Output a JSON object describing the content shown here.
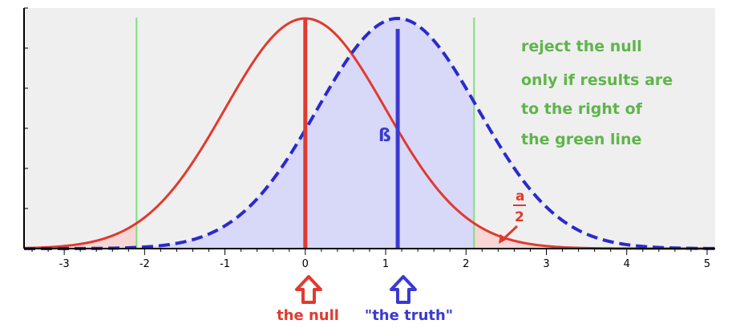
{
  "chart_data": {
    "type": "line",
    "title": "",
    "xlabel": "",
    "ylabel": "",
    "xlim": [
      -3.5,
      5.1
    ],
    "x_ticks": [
      "-3",
      "-2",
      "-1",
      "0",
      "1",
      "2",
      "3",
      "4",
      "5"
    ],
    "grid": false,
    "series": [
      {
        "name": "",
        "distribution": "normal",
        "mean": 0,
        "sd": 1,
        "color": "#e03a2e",
        "style": "solid"
      },
      {
        "name": "",
        "distribution": "normal",
        "mean": 1.15,
        "sd": 1,
        "color": "#2a2ad0",
        "style": "dashed"
      }
    ],
    "critical_values": [
      -2.1,
      2.1
    ],
    "critical_line_color": "#7ee07e",
    "null_mean_line": 0,
    "truth_mean_line": 1.15,
    "shaded_regions": {
      "alpha_tails_color": "#f8d6d6",
      "beta_region_color": "#d8d8f8"
    },
    "annotations": {
      "rule_lines": [
        "reject the null",
        "only if results are",
        "to the right of",
        "the green line"
      ],
      "beta_symbol": "ß",
      "alpha_numerator": "a",
      "alpha_denominator": "2"
    },
    "labels": {
      "null": "the null",
      "truth": "\"the truth\""
    },
    "colors": {
      "null": "#e03a2e",
      "truth": "#3a3ad0",
      "green_text": "#5fb54a",
      "plot_bg": "#efefef"
    }
  }
}
